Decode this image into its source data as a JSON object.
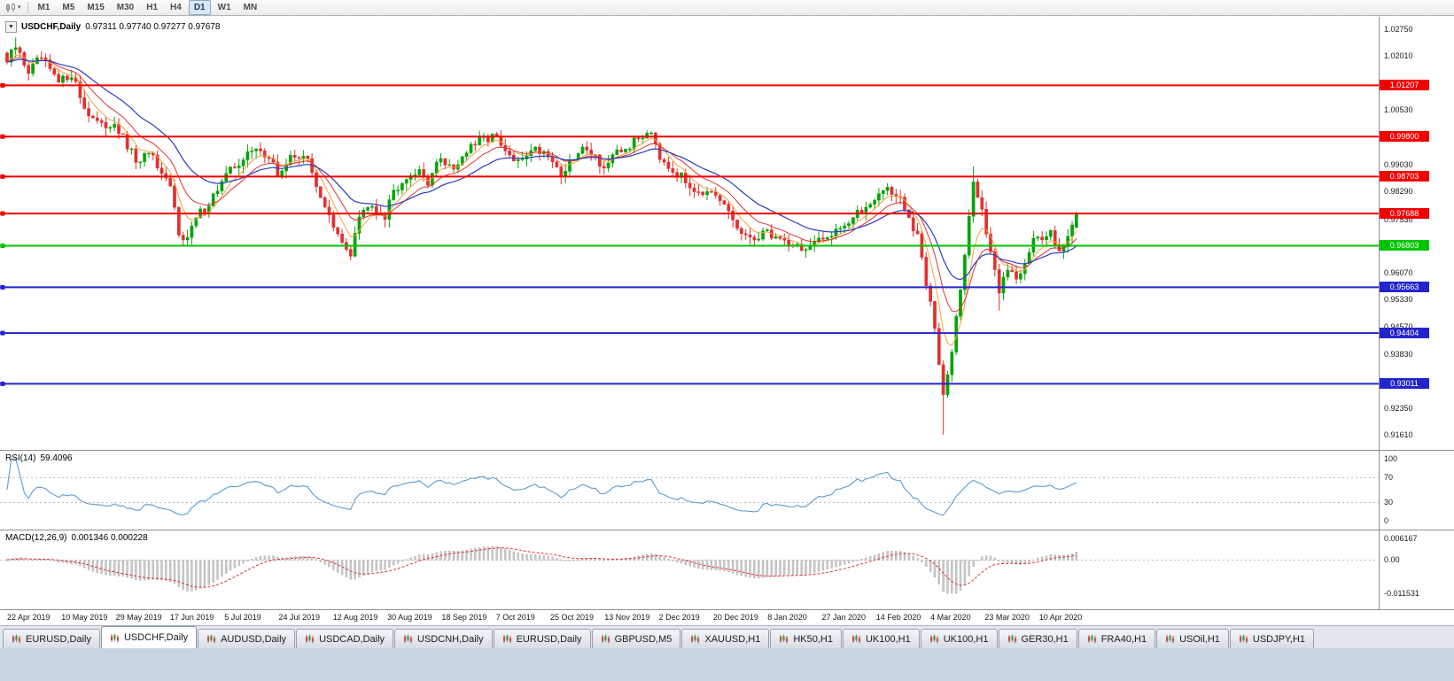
{
  "colors": {
    "bull": "#0aa30a",
    "bear": "#e23030",
    "ma_fast": "#f2a33c",
    "ma_mid": "#e23030",
    "ma_slow": "#2b3cc4",
    "rsi_line": "#5b9bd5",
    "level_dash": "#bdbdbd",
    "macd_hist": "#c9c9c9",
    "macd_hist_stroke": "#aeaeae",
    "macd_signal": "#e23030",
    "hline_red": "#f20000",
    "hline_green": "#00c400",
    "hline_blue": "#2424cc"
  },
  "toolbar": {
    "timeframes": [
      "M1",
      "M5",
      "M15",
      "M30",
      "H1",
      "H4",
      "D1",
      "W1",
      "MN"
    ],
    "active_timeframe": "D1"
  },
  "chart_header": {
    "collapse_glyph": "▼",
    "symbol": "USDCHF,Daily",
    "ohlc": "0.97311 0.97740 0.97277 0.97678"
  },
  "price_axis": {
    "ticks": [
      "1.02750",
      "1.02010",
      "1.00530",
      "0.99030",
      "0.98290",
      "0.97530",
      "0.96070",
      "0.95330",
      "0.94570",
      "0.93830",
      "0.92350",
      "0.91610"
    ],
    "badges": [
      {
        "value": "1.01207",
        "color": "red"
      },
      {
        "value": "0.99800",
        "color": "red"
      },
      {
        "value": "0.98703",
        "color": "red"
      },
      {
        "value": "0.97688",
        "color": "red"
      },
      {
        "value": "0.96803",
        "color": "green"
      },
      {
        "value": "0.95663",
        "color": "blue"
      },
      {
        "value": "0.94404",
        "color": "blue"
      },
      {
        "value": "0.93011",
        "color": "blue"
      }
    ]
  },
  "date_axis": [
    "22 Apr 2019",
    "10 May 2019",
    "29 May 2019",
    "17 Jun 2019",
    "5 Jul 2019",
    "24 Jul 2019",
    "12 Aug 2019",
    "30 Aug 2019",
    "18 Sep 2019",
    "7 Oct 2019",
    "25 Oct 2019",
    "13 Nov 2019",
    "2 Dec 2019",
    "20 Dec 2019",
    "8 Jan 2020",
    "27 Jan 2020",
    "14 Feb 2020",
    "4 Mar 2020",
    "23 Mar 2020",
    "10 Apr 2020"
  ],
  "rsi_panel": {
    "label": "RSI(14)",
    "value": "59.4096",
    "ticks": [
      "100",
      "70",
      "30",
      "0"
    ],
    "levels": [
      70,
      30
    ]
  },
  "macd_panel": {
    "label": "MACD(12,26,9)",
    "values": "0.001346 0.000228",
    "ticks": [
      "0.006167",
      "0.00",
      "-0.011531"
    ]
  },
  "tabs": {
    "active_index": 1,
    "items": [
      "EURUSD,Daily",
      "USDCHF,Daily",
      "AUDUSD,Daily",
      "USDCAD,Daily",
      "USDCNH,Daily",
      "EURUSD,Daily",
      "GBPUSD,M5",
      "XAUUSD,H1",
      "HK50,H1",
      "UK100,H1",
      "UK100,H1",
      "GER30,H1",
      "FRA40,H1",
      "USOil,H1",
      "USDJPY,H1"
    ]
  },
  "chart_data": {
    "type": "candlestick",
    "symbol": "USDCHF",
    "timeframe": "Daily",
    "ohlc_current": {
      "open": 0.97311,
      "high": 0.9774,
      "low": 0.97277,
      "close": 0.97678
    },
    "price_axis_range": {
      "min": 0.9161,
      "max": 1.0275
    },
    "num_candles": 250,
    "close_keypoints": [
      [
        0,
        1.0185
      ],
      [
        2,
        1.0225
      ],
      [
        5,
        1.016
      ],
      [
        8,
        1.0195
      ],
      [
        12,
        1.0125
      ],
      [
        15,
        1.0155
      ],
      [
        18,
        1.006
      ],
      [
        22,
        1.0005
      ],
      [
        25,
        1.002
      ],
      [
        28,
        0.995
      ],
      [
        31,
        0.99
      ],
      [
        33,
        0.9945
      ],
      [
        36,
        0.9865
      ],
      [
        38,
        0.984
      ],
      [
        40,
        0.972
      ],
      [
        42,
        0.97
      ],
      [
        44,
        0.9755
      ],
      [
        47,
        0.98
      ],
      [
        50,
        0.9855
      ],
      [
        53,
        0.99
      ],
      [
        56,
        0.993
      ],
      [
        59,
        0.995
      ],
      [
        62,
        0.99
      ],
      [
        63,
        0.9875
      ],
      [
        66,
        0.992
      ],
      [
        69,
        0.9935
      ],
      [
        72,
        0.985
      ],
      [
        74,
        0.979
      ],
      [
        76,
        0.9725
      ],
      [
        78,
        0.9685
      ],
      [
        80,
        0.966
      ],
      [
        82,
        0.976
      ],
      [
        85,
        0.979
      ],
      [
        88,
        0.9765
      ],
      [
        89,
        0.981
      ],
      [
        92,
        0.9865
      ],
      [
        95,
        0.9885
      ],
      [
        98,
        0.986
      ],
      [
        101,
        0.992
      ],
      [
        104,
        0.9895
      ],
      [
        107,
        0.994
      ],
      [
        110,
        0.9965
      ],
      [
        113,
        0.9985
      ],
      [
        116,
        0.9935
      ],
      [
        119,
        0.9905
      ],
      [
        122,
        0.995
      ],
      [
        126,
        0.9935
      ],
      [
        129,
        0.9875
      ],
      [
        132,
        0.992
      ],
      [
        135,
        0.9955
      ],
      [
        139,
        0.9895
      ],
      [
        142,
        0.993
      ],
      [
        145,
        0.9955
      ],
      [
        148,
        0.9985
      ],
      [
        150,
        1.0
      ],
      [
        152,
        0.993
      ],
      [
        155,
        0.989
      ],
      [
        158,
        0.9855
      ],
      [
        161,
        0.9835
      ],
      [
        164,
        0.9815
      ],
      [
        167,
        0.979
      ],
      [
        170,
        0.973
      ],
      [
        173,
        0.969
      ],
      [
        176,
        0.972
      ],
      [
        180,
        0.97
      ],
      [
        183,
        0.9685
      ],
      [
        186,
        0.967
      ],
      [
        190,
        0.9695
      ],
      [
        193,
        0.973
      ],
      [
        196,
        0.9745
      ],
      [
        199,
        0.9775
      ],
      [
        202,
        0.9815
      ],
      [
        205,
        0.984
      ],
      [
        208,
        0.9805
      ],
      [
        210,
        0.975
      ],
      [
        212,
        0.97
      ],
      [
        213,
        0.965
      ],
      [
        214,
        0.957
      ],
      [
        215,
        0.952
      ],
      [
        216,
        0.945
      ],
      [
        218,
        0.928
      ],
      [
        220,
        0.94
      ],
      [
        222,
        0.956
      ],
      [
        224,
        0.975
      ],
      [
        225,
        0.986
      ],
      [
        227,
        0.978
      ],
      [
        229,
        0.965
      ],
      [
        231,
        0.956
      ],
      [
        233,
        0.962
      ],
      [
        235,
        0.959
      ],
      [
        237,
        0.964
      ],
      [
        239,
        0.97
      ],
      [
        241,
        0.969
      ],
      [
        243,
        0.972
      ],
      [
        245,
        0.9675
      ],
      [
        247,
        0.97
      ],
      [
        249,
        0.97678
      ]
    ],
    "wick_highs": [
      [
        2,
        1.0252
      ],
      [
        225,
        0.9898
      ]
    ],
    "wick_lows": [
      [
        218,
        0.9161
      ],
      [
        231,
        0.9502
      ]
    ],
    "hlines": [
      {
        "price": 1.01207,
        "color": "red"
      },
      {
        "price": 0.998,
        "color": "red"
      },
      {
        "price": 0.98703,
        "color": "red"
      },
      {
        "price": 0.97688,
        "color": "red"
      },
      {
        "price": 0.96803,
        "color": "green"
      },
      {
        "price": 0.95663,
        "color": "blue"
      },
      {
        "price": 0.94404,
        "color": "blue"
      },
      {
        "price": 0.93011,
        "color": "blue"
      }
    ],
    "moving_average_periods": [
      6,
      12,
      24
    ],
    "rsi_period": 14,
    "rsi_current": 59.4096,
    "macd_params": [
      12,
      26,
      9
    ],
    "macd_current": [
      0.001346,
      0.000228
    ],
    "macd_axis_range": {
      "max": 0.006167,
      "min": -0.011531
    }
  }
}
